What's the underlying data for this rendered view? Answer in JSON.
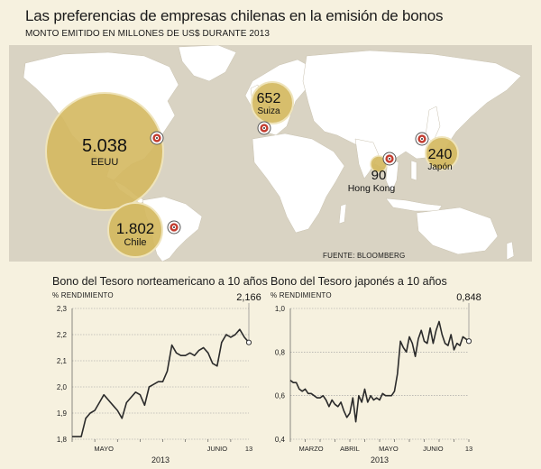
{
  "title": "Las preferencias de empresas chilenas en la emisión de bonos",
  "subtitle": "MONTO EMITIDO EN MILLONES DE US$ DURANTE 2013",
  "map": {
    "source": "FUENTE: BLOOMBERG",
    "colors": {
      "bubble": "#d4b85f",
      "bubble_stroke": "#e8dcae",
      "land": "#ffffff",
      "sea": "#d9d3c3",
      "marker": "#c23b2e"
    },
    "bubbles": [
      {
        "value": "5.038",
        "label": "EEUU"
      },
      {
        "value": "1.802",
        "label": "Chile"
      },
      {
        "value": "652",
        "label": "Suiza"
      },
      {
        "value": "90",
        "label": "Hong Kong"
      },
      {
        "value": "240",
        "label": "Japón"
      }
    ]
  },
  "chart_data": [
    {
      "type": "line",
      "title": "Bono del Tesoro norteamericano a 10 años",
      "ylabel": "% RENDIMIENTO",
      "ylim": [
        1.8,
        2.3
      ],
      "yticks": [
        "1,8",
        "1,9",
        "2,0",
        "2,1",
        "2,2",
        "2,3"
      ],
      "xtick_labels": [
        "MAYO",
        "JUNIO",
        "13"
      ],
      "year_label": "2013",
      "last_value_label": "2,166",
      "series": [
        {
          "values": [
            1.81,
            1.81,
            1.81,
            1.88,
            1.9,
            1.91,
            1.94,
            1.97,
            1.95,
            1.93,
            1.91,
            1.88,
            1.94,
            1.96,
            1.98,
            1.97,
            1.93,
            2.0,
            2.01,
            2.02,
            2.02,
            2.06,
            2.16,
            2.13,
            2.12,
            2.12,
            2.13,
            2.12,
            2.14,
            2.15,
            2.13,
            2.09,
            2.08,
            2.17,
            2.2,
            2.19,
            2.2,
            2.22,
            2.19,
            2.17
          ]
        }
      ]
    },
    {
      "type": "line",
      "title": "Bono del Tesoro japonés a 10 años",
      "ylabel": "% RENDIMIENTO",
      "ylim": [
        0.4,
        1.0
      ],
      "yticks": [
        "0,4",
        "0,6",
        "0,8",
        "1,0"
      ],
      "xtick_labels": [
        "MARZO",
        "ABRIL",
        "MAYO",
        "JUNIO",
        "13"
      ],
      "year_label": "2013",
      "last_value_label": "0,848",
      "series": [
        {
          "values": [
            0.67,
            0.66,
            0.66,
            0.63,
            0.62,
            0.63,
            0.61,
            0.61,
            0.6,
            0.59,
            0.59,
            0.6,
            0.58,
            0.55,
            0.58,
            0.56,
            0.55,
            0.57,
            0.53,
            0.5,
            0.52,
            0.59,
            0.48,
            0.6,
            0.57,
            0.63,
            0.57,
            0.6,
            0.58,
            0.59,
            0.58,
            0.61,
            0.6,
            0.6,
            0.6,
            0.62,
            0.7,
            0.85,
            0.82,
            0.8,
            0.87,
            0.84,
            0.78,
            0.86,
            0.9,
            0.85,
            0.84,
            0.91,
            0.84,
            0.9,
            0.94,
            0.88,
            0.84,
            0.83,
            0.88,
            0.81,
            0.84,
            0.83,
            0.87,
            0.86,
            0.85
          ]
        }
      ]
    }
  ]
}
